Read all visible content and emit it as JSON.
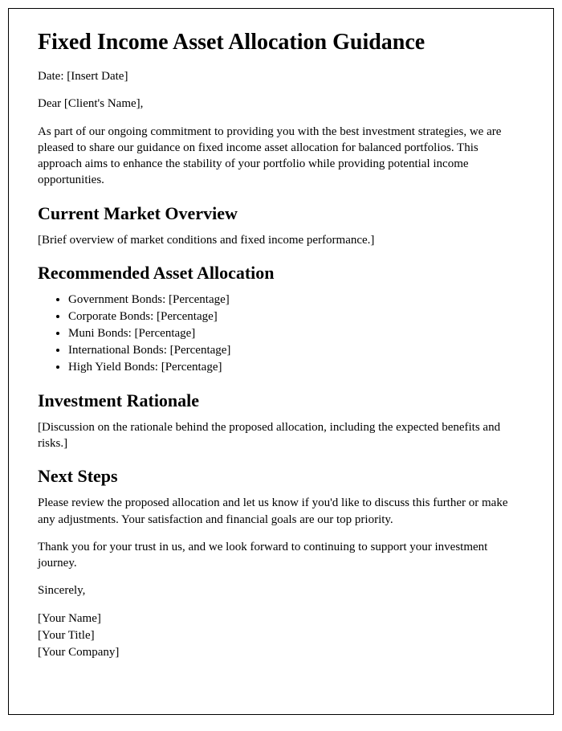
{
  "title": "Fixed Income Asset Allocation Guidance",
  "date_line": "Date: [Insert Date]",
  "salutation": "Dear [Client's Name],",
  "intro": "As part of our ongoing commitment to providing you with the best investment strategies, we are pleased to share our guidance on fixed income asset allocation for balanced portfolios. This approach aims to enhance the stability of your portfolio while providing potential income opportunities.",
  "sections": {
    "market": {
      "heading": "Current Market Overview",
      "body": "[Brief overview of market conditions and fixed income performance.]"
    },
    "allocation": {
      "heading": "Recommended Asset Allocation",
      "items": [
        "Government Bonds: [Percentage]",
        "Corporate Bonds: [Percentage]",
        "Muni Bonds: [Percentage]",
        "International Bonds: [Percentage]",
        "High Yield Bonds: [Percentage]"
      ]
    },
    "rationale": {
      "heading": "Investment Rationale",
      "body": "[Discussion on the rationale behind the proposed allocation, including the expected benefits and risks.]"
    },
    "next": {
      "heading": "Next Steps",
      "body1": "Please review the proposed allocation and let us know if you'd like to discuss this further or make any adjustments. Your satisfaction and financial goals are our top priority.",
      "body2": "Thank you for your trust in us, and we look forward to continuing to support your investment journey."
    }
  },
  "closing": "Sincerely,",
  "signature": {
    "name": "[Your Name]",
    "title": "[Your Title]",
    "company": "[Your Company]"
  }
}
